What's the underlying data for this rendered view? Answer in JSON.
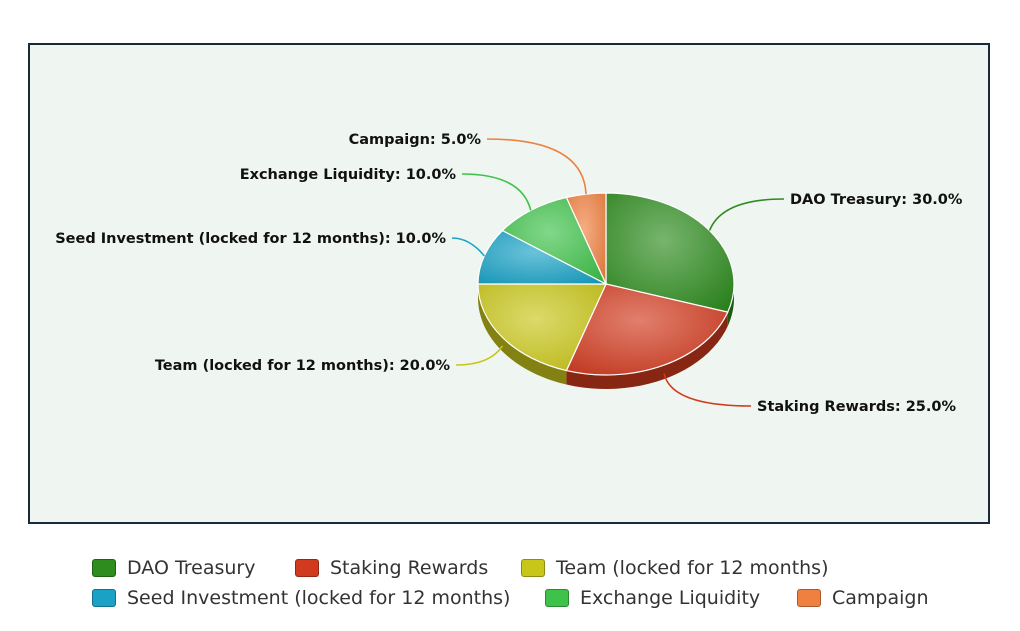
{
  "chart_data": {
    "type": "pie",
    "title": "",
    "series": [
      {
        "values": [
          30.0,
          25.0,
          20.0,
          10.0,
          10.0,
          5.0
        ],
        "categories": [
          "DAO Treasury",
          "Staking Rewards",
          "Team (locked for 12 months)",
          "Seed Investment (locked for 12 months)",
          "Exchange Liquidity",
          "Campaign"
        ]
      }
    ],
    "data_labels": [
      "DAO Treasury: 30.0%",
      "Staking Rewards: 25.0%",
      "Team (locked for 12 months): 20.0%",
      "Seed Investment (locked for 12 months): 10.0%",
      "Exchange Liquidity: 10.0%",
      "Campaign: 5.0%"
    ],
    "colors": [
      "#2e8b1e",
      "#d13a1e",
      "#c9c61a",
      "#1aa2c6",
      "#3fc24a",
      "#ef8040"
    ],
    "legend_position": "bottom",
    "style": "3d-tilted"
  },
  "legend": {
    "items": [
      {
        "label": "DAO Treasury",
        "color": "#2e8b1e"
      },
      {
        "label": "Staking Rewards",
        "color": "#d13a1e"
      },
      {
        "label": "Team (locked for 12 months)",
        "color": "#c9c61a"
      },
      {
        "label": "Seed Investment (locked for 12 months)",
        "color": "#1aa2c6"
      },
      {
        "label": "Exchange Liquidity",
        "color": "#3fc24a"
      },
      {
        "label": "Campaign",
        "color": "#ef8040"
      }
    ]
  }
}
